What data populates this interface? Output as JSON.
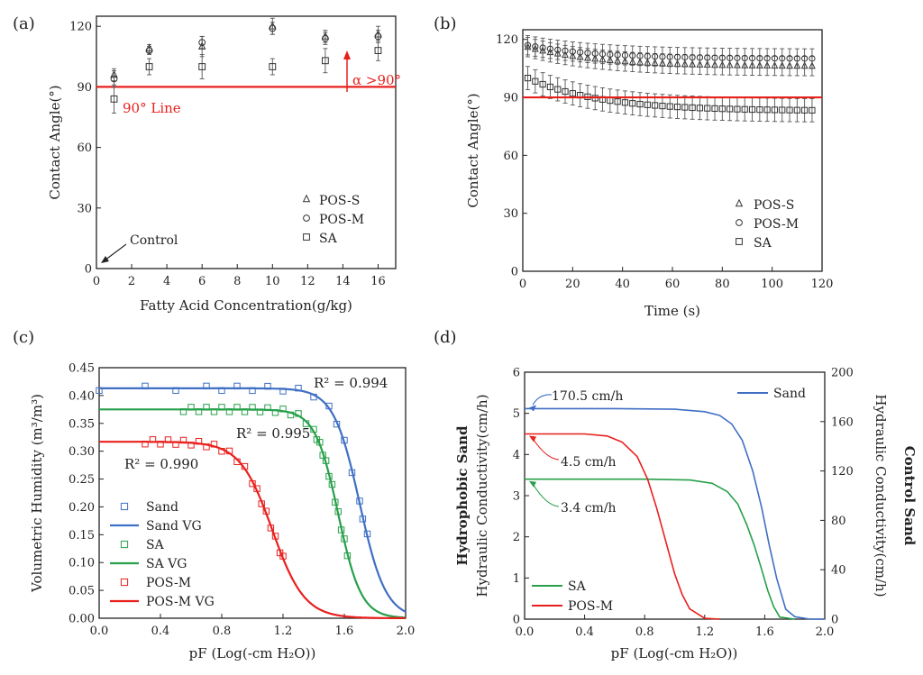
{
  "chart_data": [
    {
      "panel": "(a)",
      "type": "scatter",
      "xlabel": "Fatty Acid Concentration(g/kg)",
      "ylabel": "Contact Angle(°)",
      "xlim": [
        0,
        17
      ],
      "ylim": [
        0,
        125
      ],
      "xticks": [
        0,
        2,
        4,
        6,
        8,
        10,
        12,
        14,
        16
      ],
      "yticks": [
        0,
        30,
        60,
        90,
        120
      ],
      "series": [
        {
          "name": "POS-S",
          "marker": "triangle",
          "x": [
            1,
            3,
            6,
            10,
            13,
            16
          ],
          "y": [
            96,
            109,
            110,
            120,
            115,
            116
          ],
          "err": [
            3,
            2,
            5,
            4,
            3,
            4
          ]
        },
        {
          "name": "POS-M",
          "marker": "circle",
          "x": [
            1,
            3,
            6,
            10,
            13,
            16
          ],
          "y": [
            94,
            108,
            112,
            119,
            114,
            115
          ],
          "err": [
            4,
            2,
            3,
            3,
            3,
            3
          ]
        },
        {
          "name": "SA",
          "marker": "square",
          "x": [
            1,
            3,
            6,
            10,
            13,
            16
          ],
          "y": [
            84,
            100,
            100,
            100,
            103,
            108
          ],
          "err": [
            7,
            4,
            6,
            4,
            6,
            5
          ]
        }
      ],
      "hline": {
        "y": 90,
        "label": "90° Line",
        "color": "#e8201d"
      },
      "annotations": [
        {
          "text": "α >90°",
          "x": 14,
          "y": 98
        },
        {
          "text": "Control",
          "x": 0,
          "y": 0
        }
      ]
    },
    {
      "panel": "(b)",
      "type": "scatter",
      "xlabel": "Time (s)",
      "ylabel": "Contact Angle(°)",
      "xlim": [
        0,
        120
      ],
      "ylim": [
        0,
        125
      ],
      "xticks": [
        0,
        20,
        40,
        60,
        80,
        100,
        120
      ],
      "yticks": [
        0,
        30,
        60,
        90,
        120
      ],
      "series": [
        {
          "name": "POS-S",
          "marker": "triangle",
          "t_start": 2,
          "t_step": 3,
          "n": 39,
          "y_start": 116,
          "y_end": 106,
          "err": 5
        },
        {
          "name": "POS-M",
          "marker": "circle",
          "t_start": 2,
          "t_step": 3,
          "n": 39,
          "y_start": 117,
          "y_end": 110,
          "err": 5
        },
        {
          "name": "SA",
          "marker": "square",
          "t_start": 2,
          "t_step": 3,
          "n": 39,
          "y_start": 100,
          "y_end": 83,
          "err": 6
        }
      ],
      "hline": {
        "y": 90,
        "color": "#e8201d"
      }
    },
    {
      "panel": "(c)",
      "type": "line",
      "xlabel": "pF (Log(-cm H₂O))",
      "ylabel": "Volumetric Humidity (m³/m³)",
      "xlim": [
        0,
        2.0
      ],
      "ylim": [
        0,
        0.45
      ],
      "xticks": [
        "0.0",
        "0.4",
        "0.8",
        "1.2",
        "1.6",
        "2.0"
      ],
      "yticks": [
        "0.00",
        "0.05",
        "0.10",
        "0.15",
        "0.20",
        "0.25",
        "0.30",
        "0.35",
        "0.40",
        "0.45"
      ],
      "series": [
        {
          "name": "Sand",
          "kind": "points",
          "color": "#3f6fc4",
          "thetaS": 0.413,
          "center": 1.7,
          "width": 0.085,
          "x": [
            0.0,
            0.3,
            0.5,
            0.7,
            0.8,
            0.9,
            1.0,
            1.1,
            1.2,
            1.3,
            1.4,
            1.5,
            1.55,
            1.6,
            1.65,
            1.7,
            1.72,
            1.75
          ]
        },
        {
          "name": "Sand VG",
          "kind": "line",
          "color": "#3f6fc4",
          "thetaS": 0.413,
          "center": 1.7,
          "width": 0.085
        },
        {
          "name": "SA",
          "kind": "points",
          "color": "#27a04a",
          "thetaS": 0.375,
          "center": 1.56,
          "width": 0.075,
          "x": [
            0.55,
            0.6,
            0.65,
            0.7,
            0.75,
            0.8,
            0.85,
            0.9,
            0.95,
            1.0,
            1.05,
            1.1,
            1.15,
            1.2,
            1.25,
            1.3,
            1.35,
            1.4,
            1.42,
            1.44,
            1.46,
            1.48,
            1.5,
            1.52,
            1.54,
            1.56,
            1.58,
            1.6,
            1.62
          ]
        },
        {
          "name": "SA VG",
          "kind": "line",
          "color": "#27a04a",
          "thetaS": 0.375,
          "center": 1.56,
          "width": 0.075
        },
        {
          "name": "POS-M",
          "kind": "points",
          "color": "#e8201d",
          "thetaS": 0.317,
          "center": 1.13,
          "width": 0.105,
          "x": [
            0.3,
            0.35,
            0.4,
            0.45,
            0.5,
            0.55,
            0.6,
            0.65,
            0.7,
            0.75,
            0.8,
            0.85,
            0.9,
            0.95,
            1.0,
            1.03,
            1.06,
            1.09,
            1.12,
            1.15,
            1.18,
            1.2
          ]
        },
        {
          "name": "POS-M VG",
          "kind": "line",
          "color": "#e8201d",
          "thetaS": 0.317,
          "center": 1.13,
          "width": 0.105
        }
      ],
      "annotations": [
        {
          "text": "R² = 0.994",
          "x": 1.45,
          "y": 0.42
        },
        {
          "text": "R² = 0.995",
          "x": 0.95,
          "y": 0.335
        },
        {
          "text": "R² = 0.990",
          "x": 0.2,
          "y": 0.275
        }
      ]
    },
    {
      "panel": "(d)",
      "type": "line",
      "xlabel": "pF (Log(-cm H₂O))",
      "ylabel_left": "Hydraulic Conductivity(cm/h)",
      "ylabel_left_title": "Hydrophobic Sand",
      "ylabel_right": "Hydraulic Conductivity(cm/h)",
      "ylabel_right_title": "Control Sand",
      "xlim": [
        0,
        2.0
      ],
      "ylim_left": [
        0,
        6
      ],
      "ylim_right": [
        0,
        200
      ],
      "xticks": [
        "0.0",
        "0.4",
        "0.8",
        "1.2",
        "1.6",
        "2.0"
      ],
      "yticks_left": [
        0,
        1,
        2,
        3,
        4,
        5,
        6
      ],
      "yticks_right": [
        0,
        40,
        80,
        120,
        160,
        200
      ],
      "series": [
        {
          "name": "Sand",
          "axis": "right",
          "color": "#3f6fc4",
          "x": [
            0,
            0.6,
            1.0,
            1.2,
            1.3,
            1.38,
            1.45,
            1.52,
            1.58,
            1.63,
            1.68,
            1.74,
            1.8,
            1.9,
            2.0
          ],
          "y": [
            170.5,
            170.5,
            170,
            168,
            165,
            158,
            145,
            120,
            90,
            60,
            33,
            8,
            2,
            0,
            0
          ]
        },
        {
          "name": "SA",
          "axis": "left",
          "color": "#27a04a",
          "x": [
            0,
            0.8,
            1.1,
            1.25,
            1.35,
            1.42,
            1.48,
            1.53,
            1.58,
            1.62,
            1.66,
            1.7,
            1.8
          ],
          "y": [
            3.4,
            3.4,
            3.38,
            3.3,
            3.1,
            2.8,
            2.3,
            1.8,
            1.2,
            0.7,
            0.3,
            0.05,
            0
          ]
        },
        {
          "name": "POS-M",
          "axis": "left",
          "color": "#e8201d",
          "x": [
            0,
            0.4,
            0.55,
            0.65,
            0.75,
            0.82,
            0.88,
            0.94,
            1.0,
            1.05,
            1.1,
            1.2,
            1.3
          ],
          "y": [
            4.5,
            4.5,
            4.45,
            4.3,
            3.95,
            3.4,
            2.7,
            1.9,
            1.1,
            0.6,
            0.25,
            0.02,
            0
          ]
        }
      ],
      "annotations": [
        {
          "text": "170.5 cm/h",
          "color": "#3f6fc4"
        },
        {
          "text": "4.5 cm/h",
          "color": "#e8201d"
        },
        {
          "text": "3.4 cm/h",
          "color": "#27a04a"
        }
      ]
    }
  ]
}
